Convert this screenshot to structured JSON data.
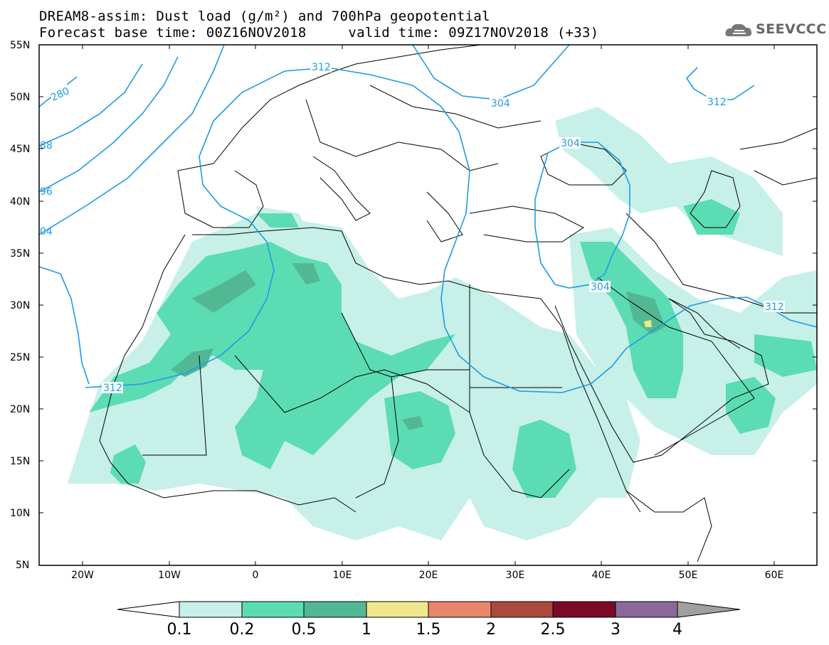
{
  "header": {
    "line1": "DREAM8-assim: Dust load (g/m²) and 700hPa geopotential",
    "line2": "Forecast base time: 00Z16NOV2018     valid time: 09Z17NOV2018 (+33)"
  },
  "logo": {
    "text": "SEEVCCC",
    "icon": "cloud-logo-icon"
  },
  "map": {
    "lat_labels": [
      "55N",
      "50N",
      "45N",
      "40N",
      "35N",
      "30N",
      "25N",
      "20N",
      "15N",
      "10N",
      "5N"
    ],
    "lon_labels": [
      "20W",
      "10W",
      "0",
      "10E",
      "20E",
      "30E",
      "40E",
      "50E",
      "60E"
    ],
    "contour_labels": [
      "312",
      "280",
      "88",
      "96",
      "04",
      "304",
      "312",
      "304",
      "304",
      "312",
      "312"
    ],
    "dust_colors": [
      "#c6f0e8",
      "#5cdcb2",
      "#52b894",
      "#f0e68c"
    ],
    "contour_color": "#1e9be6"
  },
  "colorbar": {
    "labels": [
      "0.1",
      "0.2",
      "0.5",
      "1",
      "1.5",
      "2",
      "2.5",
      "3",
      "4"
    ],
    "colors": [
      "#ffffff",
      "#c6f0e8",
      "#5cdcb2",
      "#52b894",
      "#f0e68c",
      "#e8876a",
      "#aa4a3e",
      "#7a0a28",
      "#8a6a9a",
      "#a0a0a0"
    ]
  }
}
